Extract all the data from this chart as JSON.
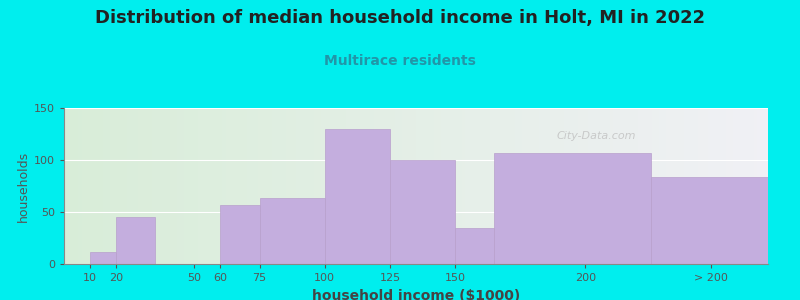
{
  "title": "Distribution of median household income in Holt, MI in 2022",
  "subtitle": "Multirace residents",
  "xlabel": "household income ($1000)",
  "ylabel": "households",
  "background_color": "#00EEEE",
  "plot_bg_gradient_left": "#d8edd8",
  "plot_bg_gradient_right": "#f0f0f5",
  "bar_color": "#C4AEDE",
  "bar_edge_color": "#b8a0cc",
  "title_fontsize": 13,
  "subtitle_fontsize": 10,
  "subtitle_color": "#2196A8",
  "ylabel_fontsize": 9,
  "xlabel_fontsize": 10,
  "tick_labels": [
    "10",
    "20",
    "50",
    "60",
    "75",
    "100",
    "125",
    "150",
    "200",
    "> 200"
  ],
  "bar_heights": [
    12,
    45,
    0,
    57,
    63,
    130,
    100,
    35,
    107,
    84
  ],
  "bar_left_edges": [
    10,
    20,
    35,
    60,
    75,
    100,
    125,
    150,
    165,
    225
  ],
  "bar_right_edges": [
    20,
    35,
    60,
    75,
    100,
    125,
    150,
    165,
    225,
    270
  ],
  "xtick_positions": [
    10,
    20,
    50,
    60,
    75,
    100,
    125,
    150,
    200,
    248
  ],
  "xtick_labels": [
    "10",
    "20",
    "50",
    "60",
    "75",
    "100",
    "125",
    "150",
    "200",
    "> 200"
  ],
  "xlim": [
    0,
    270
  ],
  "ylim": [
    0,
    150
  ],
  "yticks": [
    0,
    50,
    100,
    150
  ],
  "watermark": "City-Data.com"
}
